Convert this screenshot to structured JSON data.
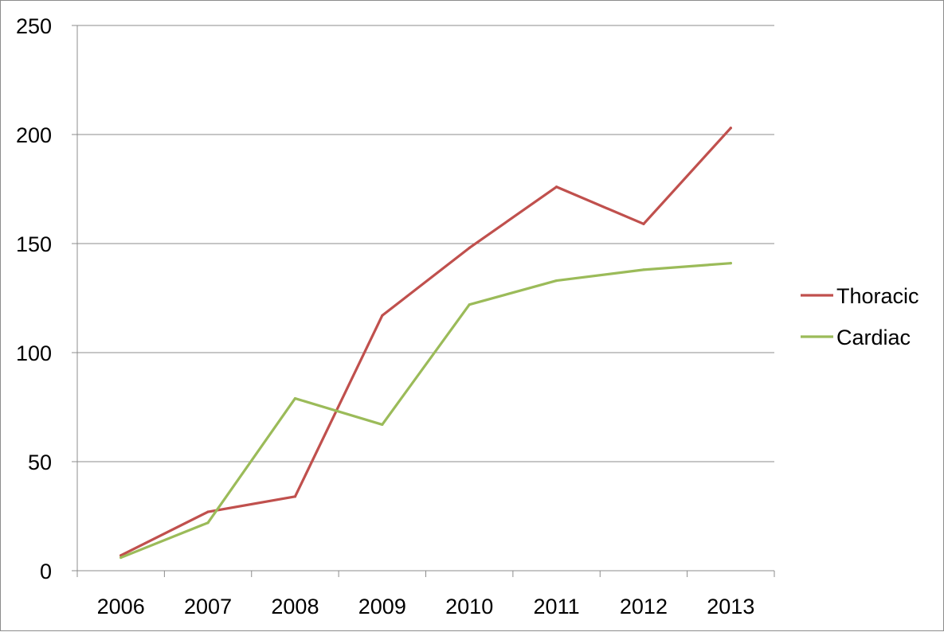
{
  "chart_data": {
    "type": "line",
    "title": "",
    "xlabel": "",
    "ylabel": "",
    "categories": [
      "2006",
      "2007",
      "2008",
      "2009",
      "2010",
      "2011",
      "2012",
      "2013"
    ],
    "ylim": [
      0,
      250
    ],
    "yticks": [
      "0",
      "50",
      "100",
      "150",
      "200",
      "250"
    ],
    "grid": true,
    "legend_position": "right",
    "series": [
      {
        "name": "Thoracic",
        "color": "#c0504d",
        "values": [
          7,
          27,
          34,
          117,
          148,
          176,
          159,
          203
        ]
      },
      {
        "name": "Cardiac",
        "color": "#9bbb59",
        "values": [
          6,
          22,
          79,
          67,
          122,
          133,
          138,
          141
        ]
      }
    ]
  }
}
